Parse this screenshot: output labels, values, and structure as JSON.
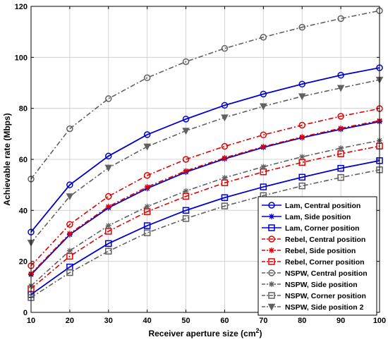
{
  "chart_data": {
    "type": "line",
    "xlabel": "Receiver aperture size (cm",
    "xlabel_sup": "2",
    "xlabel_close": ")",
    "ylabel": "Achievable rate (Mbps)",
    "xlim": [
      10,
      100
    ],
    "ylim": [
      0,
      120
    ],
    "xticks": [
      10,
      20,
      30,
      40,
      50,
      60,
      70,
      80,
      90,
      100
    ],
    "yticks": [
      0,
      20,
      40,
      60,
      80,
      100,
      120
    ],
    "grid": true,
    "legend_position": "bottom-right",
    "x": [
      10,
      20,
      30,
      40,
      50,
      60,
      70,
      80,
      90,
      100
    ],
    "series": [
      {
        "name": "Lam, Central position",
        "color": "#0000cc",
        "dash": "solid",
        "marker": "circle",
        "values": [
          31.5,
          50,
          61.3,
          69.7,
          75.8,
          81.2,
          85.6,
          89.5,
          93,
          95.9
        ]
      },
      {
        "name": "Lam, Side position",
        "color": "#0000cc",
        "dash": "solid",
        "marker": "star",
        "values": [
          14.8,
          30.5,
          41,
          48.6,
          55,
          60.2,
          64.7,
          68.5,
          71.8,
          74.8
        ]
      },
      {
        "name": "Lam, Corner position",
        "color": "#0000cc",
        "dash": "solid",
        "marker": "square",
        "values": [
          7,
          17.8,
          27,
          34,
          40,
          45,
          49.2,
          53,
          56.5,
          59.5
        ]
      },
      {
        "name": "Rebel, Central position",
        "color": "#e00000",
        "dash": "dashdot",
        "marker": "circle",
        "values": [
          18.3,
          34.5,
          45.5,
          53.7,
          60,
          65.1,
          69.6,
          73.4,
          76.9,
          79.9
        ]
      },
      {
        "name": "Rebel, Side position",
        "color": "#e00000",
        "dash": "dashdot",
        "marker": "star",
        "values": [
          15.2,
          30.9,
          41.5,
          49.2,
          55.5,
          60.6,
          65,
          68.8,
          72.2,
          75.2
        ]
      },
      {
        "name": "Rebel, Corner position",
        "color": "#e00000",
        "dash": "dashdot",
        "marker": "square",
        "values": [
          9.3,
          22,
          31.8,
          39.5,
          45.5,
          50.8,
          55.1,
          58.8,
          62.2,
          65.2
        ]
      },
      {
        "name": "NSPW, Central position",
        "color": "#606060",
        "dash": "dashdot",
        "marker": "circle",
        "values": [
          52.3,
          72,
          83.8,
          92,
          98.3,
          103.5,
          107.9,
          111.8,
          115.2,
          118.3
        ]
      },
      {
        "name": "NSPW, Side position",
        "color": "#606060",
        "dash": "dashdot",
        "marker": "star",
        "values": [
          10.4,
          24.2,
          34,
          41.5,
          47.6,
          52.8,
          57.1,
          61,
          64.4,
          67.4
        ]
      },
      {
        "name": "NSPW, Corner position",
        "color": "#606060",
        "dash": "dashdot",
        "marker": "square",
        "values": [
          5.8,
          15.6,
          24,
          31.2,
          36.8,
          41.7,
          45.8,
          49.6,
          52.9,
          55.9
        ]
      },
      {
        "name": "NSPW, Side position 2",
        "color": "#606060",
        "dash": "dashdot",
        "marker": "triangle-down",
        "values": [
          27.3,
          45.5,
          56.7,
          65,
          71.2,
          76.4,
          80.8,
          84.7,
          88,
          91.2
        ]
      }
    ]
  }
}
